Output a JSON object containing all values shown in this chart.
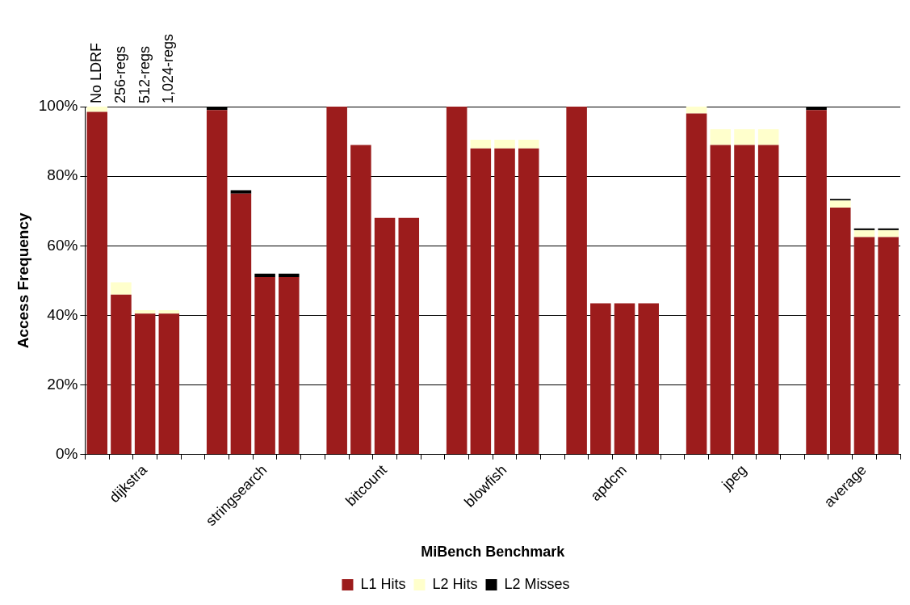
{
  "chart_data": {
    "type": "bar",
    "stacked": true,
    "xlabel": "MiBench Benchmark",
    "ylabel": "Access Frequency",
    "categories": [
      null,
      null,
      "dijkstra",
      null,
      null,
      null,
      null,
      "stringsearch",
      null,
      null,
      null,
      null,
      "bitcount",
      null,
      null,
      null,
      null,
      "blowfish",
      null,
      null,
      null,
      null,
      "apdcm",
      null,
      null,
      null,
      null,
      "jpeg",
      null,
      null,
      null,
      null,
      "average",
      null
    ],
    "series": [
      {
        "name": "L1 Hits",
        "color": "#9c1c1c",
        "values": [
          98.5,
          46,
          40.5,
          40.5,
          null,
          99,
          75,
          51,
          51,
          null,
          100,
          89,
          68,
          68,
          null,
          100,
          88,
          88,
          88,
          null,
          100,
          43.5,
          43.5,
          43.5,
          null,
          98,
          89,
          89,
          89,
          null,
          99,
          71,
          62.5,
          62.5
        ]
      },
      {
        "name": "L2 Hits",
        "color": "#ffffcc",
        "values": [
          1.5,
          3.5,
          1,
          1,
          null,
          0,
          0,
          0,
          0,
          null,
          0,
          0,
          0,
          0,
          null,
          0,
          2.5,
          2.5,
          2.5,
          null,
          0,
          0,
          0,
          0,
          null,
          2,
          4.5,
          4.5,
          4.5,
          null,
          0,
          2,
          2,
          2
        ]
      },
      {
        "name": "L2 Misses",
        "color": "#000000",
        "values": [
          0,
          0,
          0,
          0,
          null,
          1,
          1,
          1,
          1,
          null,
          0,
          0,
          0,
          0,
          null,
          0,
          0,
          0,
          0,
          null,
          0,
          0,
          0,
          0,
          null,
          0,
          0,
          0,
          0,
          null,
          1,
          0.5,
          0.5,
          0.5
        ]
      }
    ],
    "ylim": [
      0,
      100
    ],
    "yticks": [
      {
        "value": 0,
        "label": "0%"
      },
      {
        "value": 20,
        "label": "20%"
      },
      {
        "value": 40,
        "label": "40%"
      },
      {
        "value": 60,
        "label": "60%"
      },
      {
        "value": 80,
        "label": "80%"
      },
      {
        "value": 100,
        "label": "100%"
      }
    ],
    "grid": "y",
    "legend": "bottom",
    "annotations": [
      "No LDRF",
      "256-regs",
      "512-regs",
      "1,024-regs"
    ]
  }
}
